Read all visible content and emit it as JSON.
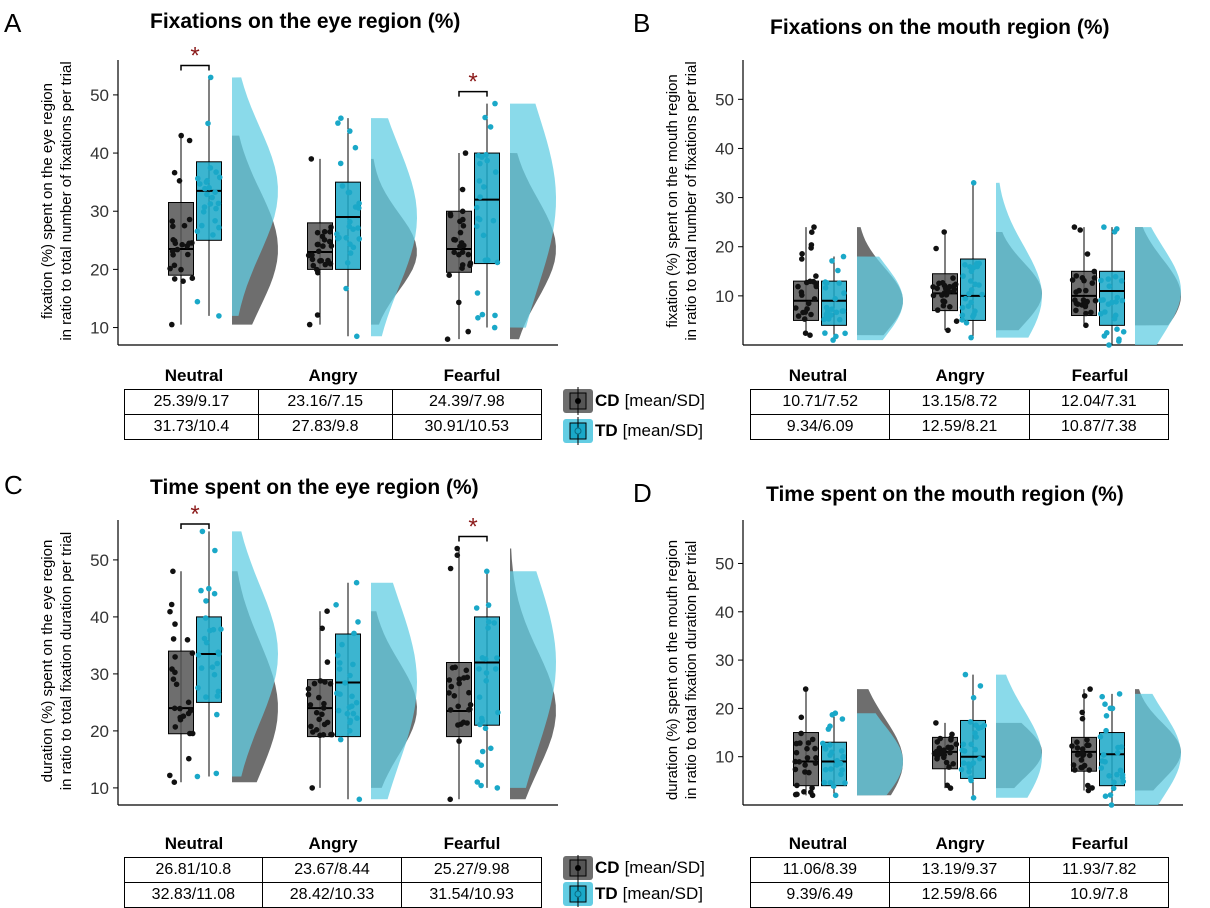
{
  "colors": {
    "cd": "#555555",
    "td": "#1aa8c8",
    "td_dist": "#63cde3",
    "star": "#8b1a1a",
    "teal_overlap": "#1f8e9c"
  },
  "legend": {
    "cd_group": "CD",
    "cd_label": "[mean/SD]",
    "td_group": "TD",
    "td_label": "[mean/SD]"
  },
  "panels": [
    {
      "letter": "A",
      "title": "Fixations on the eye region (%)",
      "ylabel1": "fixation (%) spent on the eye region",
      "ylabel2": "in ratio to total number of fixations per trial",
      "categories": [
        "Neutral",
        "Angry",
        "Fearful"
      ],
      "table": {
        "cd": [
          "25.39/9.17",
          "23.16/7.15",
          "24.39/7.98"
        ],
        "td": [
          "31.73/10.4",
          "27.83/9.8",
          "30.91/10.53"
        ]
      }
    },
    {
      "letter": "B",
      "title": "Fixations on the mouth region (%)",
      "ylabel1": "fixation (%) spent on the mouth region",
      "ylabel2": "in ratio to total number of fixations per trial",
      "categories": [
        "Neutral",
        "Angry",
        "Fearful"
      ],
      "table": {
        "cd": [
          "10.71/7.52",
          "13.15/8.72",
          "12.04/7.31"
        ],
        "td": [
          "9.34/6.09",
          "12.59/8.21",
          "10.87/7.38"
        ]
      }
    },
    {
      "letter": "C",
      "title": "Time spent on the eye region (%)",
      "ylabel1": "duration (%) spent on the eye region",
      "ylabel2": "in ratio to total fixation duration per trial",
      "categories": [
        "Neutral",
        "Angry",
        "Fearful"
      ],
      "table": {
        "cd": [
          "26.81/10.8",
          "23.67/8.44",
          "25.27/9.98"
        ],
        "td": [
          "32.83/11.08",
          "28.42/10.33",
          "31.54/10.93"
        ]
      }
    },
    {
      "letter": "D",
      "title": "Time spent on the mouth region (%)",
      "ylabel1": "duration (%) spent on the mouth region",
      "ylabel2": "in ratio to total fixation duration per trial",
      "categories": [
        "Neutral",
        "Angry",
        "Fearful"
      ],
      "table": {
        "cd": [
          "11.06/8.39",
          "13.19/9.37",
          "11.93/7.82"
        ],
        "td": [
          "9.39/6.49",
          "12.59/8.66",
          "10.9/7.8"
        ]
      }
    }
  ],
  "chart_data": [
    {
      "type": "box",
      "title": "Fixations on the eye region (%)",
      "ylim": [
        7,
        56
      ],
      "yticks": [
        10,
        20,
        30,
        40,
        50
      ],
      "categories": [
        "Neutral",
        "Angry",
        "Fearful"
      ],
      "series": [
        {
          "name": "CD",
          "boxes": [
            {
              "min": 10.5,
              "q1": 19,
              "median": 23.5,
              "q3": 31.5,
              "max": 43
            },
            {
              "min": 10.5,
              "q1": 20,
              "median": 23,
              "q3": 28,
              "max": 39
            },
            {
              "min": 8,
              "q1": 19.5,
              "median": 23.5,
              "q3": 30,
              "max": 40
            }
          ]
        },
        {
          "name": "TD",
          "boxes": [
            {
              "min": 12,
              "q1": 25,
              "median": 33.5,
              "q3": 38.5,
              "max": 53
            },
            {
              "min": 8.5,
              "q1": 20,
              "median": 29,
              "q3": 35,
              "max": 46
            },
            {
              "min": 10,
              "q1": 21,
              "median": 32,
              "q3": 40,
              "max": 48.5
            }
          ]
        }
      ],
      "significance": [
        "*",
        "",
        "*"
      ]
    },
    {
      "type": "box",
      "title": "Fixations on the mouth region (%)",
      "ylim": [
        0,
        58
      ],
      "yticks": [
        10,
        20,
        30,
        40,
        50
      ],
      "categories": [
        "Neutral",
        "Angry",
        "Fearful"
      ],
      "series": [
        {
          "name": "CD",
          "boxes": [
            {
              "min": 2,
              "q1": 5,
              "median": 9,
              "q3": 13,
              "max": 24
            },
            {
              "min": 3,
              "q1": 7,
              "median": 10.5,
              "q3": 14.5,
              "max": 23
            },
            {
              "min": 4,
              "q1": 6,
              "median": 10,
              "q3": 15,
              "max": 24
            }
          ]
        },
        {
          "name": "TD",
          "boxes": [
            {
              "min": 1,
              "q1": 4,
              "median": 9,
              "q3": 13,
              "max": 18
            },
            {
              "min": 1.5,
              "q1": 5,
              "median": 10,
              "q3": 17.5,
              "max": 33
            },
            {
              "min": 0,
              "q1": 4,
              "median": 11,
              "q3": 15,
              "max": 24
            }
          ]
        }
      ],
      "significance": [
        "",
        "",
        ""
      ]
    },
    {
      "type": "box",
      "title": "Time spent on the eye region (%)",
      "ylim": [
        7,
        57
      ],
      "yticks": [
        10,
        20,
        30,
        40,
        50
      ],
      "categories": [
        "Neutral",
        "Angry",
        "Fearful"
      ],
      "series": [
        {
          "name": "CD",
          "boxes": [
            {
              "min": 11,
              "q1": 19.5,
              "median": 24,
              "q3": 34,
              "max": 48
            },
            {
              "min": 10,
              "q1": 19,
              "median": 24,
              "q3": 29,
              "max": 41
            },
            {
              "min": 8,
              "q1": 19,
              "median": 23.5,
              "q3": 32,
              "max": 52
            }
          ]
        },
        {
          "name": "TD",
          "boxes": [
            {
              "min": 12,
              "q1": 25,
              "median": 33.5,
              "q3": 40,
              "max": 55
            },
            {
              "min": 8,
              "q1": 19,
              "median": 28.5,
              "q3": 37,
              "max": 46
            },
            {
              "min": 10,
              "q1": 21,
              "median": 32,
              "q3": 40,
              "max": 48
            }
          ]
        }
      ],
      "significance": [
        "*",
        "",
        "*"
      ]
    },
    {
      "type": "box",
      "title": "Time spent on the mouth region (%)",
      "ylim": [
        0,
        59
      ],
      "yticks": [
        10,
        20,
        30,
        40,
        50
      ],
      "categories": [
        "Neutral",
        "Angry",
        "Fearful"
      ],
      "series": [
        {
          "name": "CD",
          "boxes": [
            {
              "min": 2,
              "q1": 4,
              "median": 9,
              "q3": 15,
              "max": 24
            },
            {
              "min": 3.5,
              "q1": 7.5,
              "median": 11,
              "q3": 14,
              "max": 17
            },
            {
              "min": 3,
              "q1": 7,
              "median": 11,
              "q3": 14,
              "max": 24
            }
          ]
        },
        {
          "name": "TD",
          "boxes": [
            {
              "min": 2,
              "q1": 4,
              "median": 9,
              "q3": 13,
              "max": 19
            },
            {
              "min": 1.5,
              "q1": 5.5,
              "median": 10,
              "q3": 17.5,
              "max": 27
            },
            {
              "min": 0,
              "q1": 4,
              "median": 10.5,
              "q3": 15,
              "max": 23
            }
          ]
        }
      ],
      "significance": [
        "",
        "",
        ""
      ]
    }
  ]
}
